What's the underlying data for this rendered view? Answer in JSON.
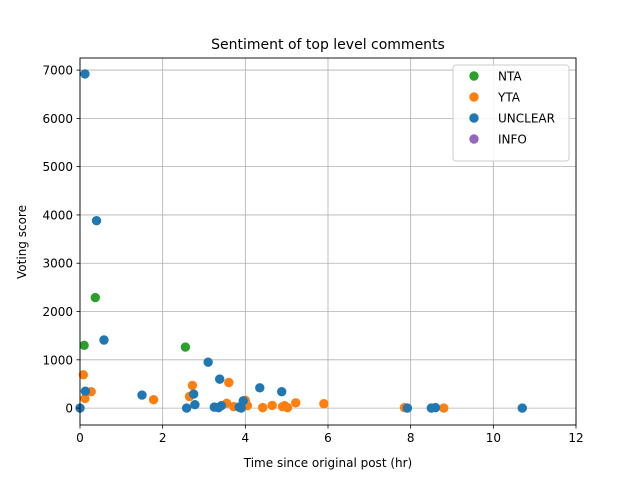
{
  "chart_data": {
    "type": "scatter",
    "title": "Sentiment of top level comments",
    "xlabel": "Time since original post (hr)",
    "ylabel": "Voting score",
    "xlim": [
      0,
      12
    ],
    "ylim": [
      -350,
      7250
    ],
    "xticks": [
      0,
      2,
      4,
      6,
      8,
      10,
      12
    ],
    "yticks": [
      0,
      1000,
      2000,
      3000,
      4000,
      5000,
      6000,
      7000
    ],
    "grid": true,
    "legend_position": "top-right",
    "series": [
      {
        "name": "NTA",
        "color": "#2ca02c",
        "points": [
          {
            "x": 0.1,
            "y": 1300
          },
          {
            "x": 0.37,
            "y": 2290
          },
          {
            "x": 2.55,
            "y": 1265
          }
        ]
      },
      {
        "name": "YTA",
        "color": "#ff7f0e",
        "points": [
          {
            "x": 0.08,
            "y": 690
          },
          {
            "x": 0.12,
            "y": 200
          },
          {
            "x": 0.27,
            "y": 340
          },
          {
            "x": 1.78,
            "y": 175
          },
          {
            "x": 2.65,
            "y": 240
          },
          {
            "x": 2.72,
            "y": 470
          },
          {
            "x": 3.55,
            "y": 100
          },
          {
            "x": 3.6,
            "y": 530
          },
          {
            "x": 3.72,
            "y": 30
          },
          {
            "x": 3.9,
            "y": 40
          },
          {
            "x": 4.0,
            "y": 160
          },
          {
            "x": 4.05,
            "y": 50
          },
          {
            "x": 4.42,
            "y": 10
          },
          {
            "x": 4.65,
            "y": 55
          },
          {
            "x": 4.9,
            "y": 30
          },
          {
            "x": 4.95,
            "y": 50
          },
          {
            "x": 5.02,
            "y": 10
          },
          {
            "x": 5.22,
            "y": 110
          },
          {
            "x": 5.9,
            "y": 90
          },
          {
            "x": 7.85,
            "y": 10
          },
          {
            "x": 8.8,
            "y": 0
          }
        ]
      },
      {
        "name": "UNCLEAR",
        "color": "#1f77b4",
        "points": [
          {
            "x": 0.0,
            "y": 0
          },
          {
            "x": 0.12,
            "y": 6920
          },
          {
            "x": 0.13,
            "y": 350
          },
          {
            "x": 0.4,
            "y": 3880
          },
          {
            "x": 0.58,
            "y": 1410
          },
          {
            "x": 1.5,
            "y": 270
          },
          {
            "x": 2.58,
            "y": 0
          },
          {
            "x": 2.75,
            "y": 290
          },
          {
            "x": 2.78,
            "y": 70
          },
          {
            "x": 3.1,
            "y": 950
          },
          {
            "x": 3.25,
            "y": 20
          },
          {
            "x": 3.35,
            "y": 10
          },
          {
            "x": 3.38,
            "y": 600
          },
          {
            "x": 3.42,
            "y": 50
          },
          {
            "x": 3.85,
            "y": 20
          },
          {
            "x": 3.9,
            "y": 0
          },
          {
            "x": 3.95,
            "y": 150
          },
          {
            "x": 4.35,
            "y": 420
          },
          {
            "x": 4.88,
            "y": 340
          },
          {
            "x": 7.92,
            "y": 0
          },
          {
            "x": 8.5,
            "y": 0
          },
          {
            "x": 8.6,
            "y": 10
          },
          {
            "x": 10.7,
            "y": 0
          }
        ]
      },
      {
        "name": "INFO",
        "color": "#9467bd",
        "points": []
      }
    ]
  }
}
